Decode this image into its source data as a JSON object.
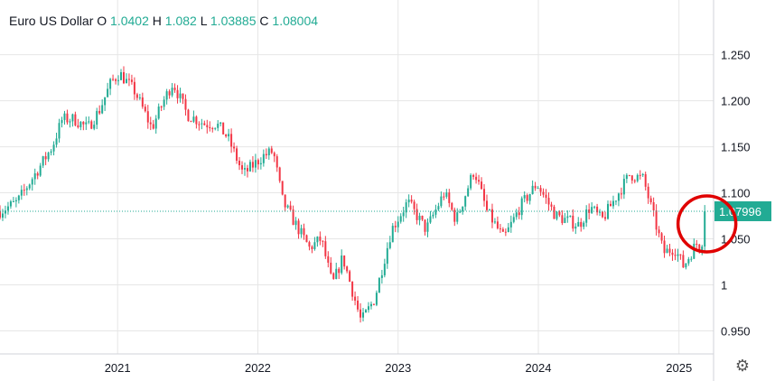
{
  "header": {
    "symbol": "Euro US Dollar",
    "o_label": "O",
    "o_value": "1.0402",
    "h_label": "H",
    "h_value": "1.082",
    "l_label": "L",
    "l_value": "1.03885",
    "c_label": "C",
    "c_value": "1.08004"
  },
  "price_tag": "1.07996",
  "colors": {
    "up": "#22ab94",
    "down": "#f23645",
    "grid": "#e6e6e6",
    "highlight": "#e00000",
    "text": "#131722"
  },
  "icons": {
    "settings": "gear-icon"
  },
  "chart_data": {
    "type": "candlestick",
    "title": "Euro US Dollar",
    "y_ticks": [
      "1.250",
      "1.200",
      "1.150",
      "1.100",
      "1.050",
      "1",
      "0.950"
    ],
    "x_ticks": [
      "2021",
      "2022",
      "2023",
      "2024",
      "2025"
    ],
    "ylim": [
      0.925,
      1.28
    ],
    "xlim": [
      "2020-03-01",
      "2025-04-01"
    ],
    "last_close": 1.07996,
    "grid": true,
    "price_path": [
      [
        "2020-03-01",
        1.08
      ],
      [
        "2020-04-15",
        1.09
      ],
      [
        "2020-05-15",
        1.11
      ],
      [
        "2020-06-15",
        1.13
      ],
      [
        "2020-07-15",
        1.15
      ],
      [
        "2020-08-10",
        1.18
      ],
      [
        "2020-09-10",
        1.18
      ],
      [
        "2020-10-15",
        1.17
      ],
      [
        "2020-11-15",
        1.19
      ],
      [
        "2020-12-15",
        1.22
      ],
      [
        "2021-01-06",
        1.23
      ],
      [
        "2021-02-15",
        1.21
      ],
      [
        "2021-03-31",
        1.17
      ],
      [
        "2021-05-01",
        1.2
      ],
      [
        "2021-05-25",
        1.22
      ],
      [
        "2021-07-01",
        1.185
      ],
      [
        "2021-08-15",
        1.175
      ],
      [
        "2021-09-15",
        1.175
      ],
      [
        "2021-10-15",
        1.16
      ],
      [
        "2021-11-24",
        1.12
      ],
      [
        "2022-01-15",
        1.14
      ],
      [
        "2022-02-10",
        1.145
      ],
      [
        "2022-03-07",
        1.09
      ],
      [
        "2022-05-15",
        1.04
      ],
      [
        "2022-06-15",
        1.05
      ],
      [
        "2022-07-14",
        1.0
      ],
      [
        "2022-08-10",
        1.03
      ],
      [
        "2022-09-27",
        0.96
      ],
      [
        "2022-11-01",
        0.985
      ],
      [
        "2022-12-15",
        1.06
      ],
      [
        "2023-01-26",
        1.09
      ],
      [
        "2023-03-15",
        1.06
      ],
      [
        "2023-05-01",
        1.1
      ],
      [
        "2023-06-01",
        1.07
      ],
      [
        "2023-07-18",
        1.125
      ],
      [
        "2023-08-20",
        1.08
      ],
      [
        "2023-10-03",
        1.05
      ],
      [
        "2023-11-15",
        1.085
      ],
      [
        "2023-12-28",
        1.11
      ],
      [
        "2024-02-15",
        1.075
      ],
      [
        "2024-04-16",
        1.065
      ],
      [
        "2024-05-15",
        1.085
      ],
      [
        "2024-06-14",
        1.07
      ],
      [
        "2024-08-26",
        1.12
      ],
      [
        "2024-09-30",
        1.115
      ],
      [
        "2024-11-22",
        1.035
      ],
      [
        "2024-12-20",
        1.04
      ],
      [
        "2025-01-13",
        1.02
      ],
      [
        "2025-02-15",
        1.045
      ],
      [
        "2025-02-28",
        1.04
      ],
      [
        "2025-03-10",
        1.08
      ]
    ]
  }
}
